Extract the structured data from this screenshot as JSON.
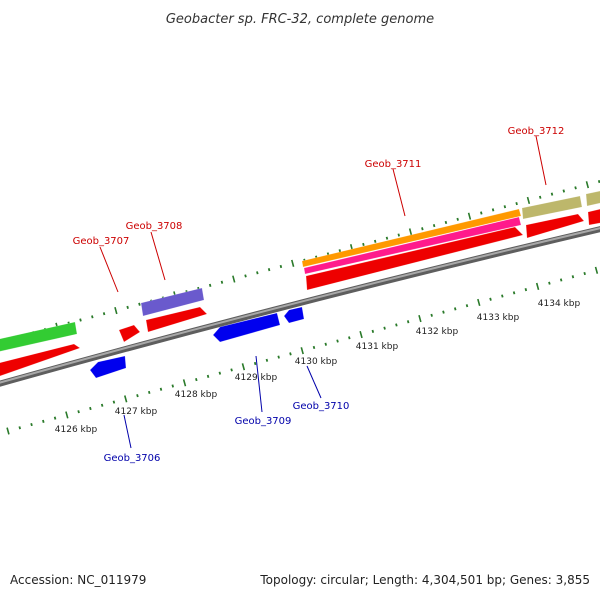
{
  "title": "Geobacter sp. FRC-32, complete genome",
  "footer": {
    "accession": "Accession: NC_011979",
    "summary": "Topology: circular; Length: 4,304,501 bp; Genes: 3,855"
  },
  "colors": {
    "backbone": "#8a8a8a",
    "tick_dot": "#2a7a2a",
    "forward_label": "#cc0000",
    "reverse_label": "#0000aa",
    "red": "#ff0000",
    "orange": "#ff9900",
    "magenta": "#ff1493",
    "green": "#33cc33",
    "blue": "#0000ee",
    "slateblue": "#6a5acd",
    "khaki": "#bdb76b"
  },
  "scale_labels": [
    "4126 kbp",
    "4127 kbp",
    "4128 kbp",
    "4129 kbp",
    "4130 kbp",
    "4131 kbp",
    "4132 kbp",
    "4133 kbp",
    "4134 kbp"
  ],
  "gene_labels": [
    {
      "text": "Geob_3706",
      "strand": "reverse"
    },
    {
      "text": "Geob_3707",
      "strand": "forward"
    },
    {
      "text": "Geob_3708",
      "strand": "forward"
    },
    {
      "text": "Geob_3709",
      "strand": "reverse"
    },
    {
      "text": "Geob_3710",
      "strand": "reverse"
    },
    {
      "text": "Geob_3711",
      "strand": "forward"
    },
    {
      "text": "Geob_3712",
      "strand": "forward"
    }
  ]
}
